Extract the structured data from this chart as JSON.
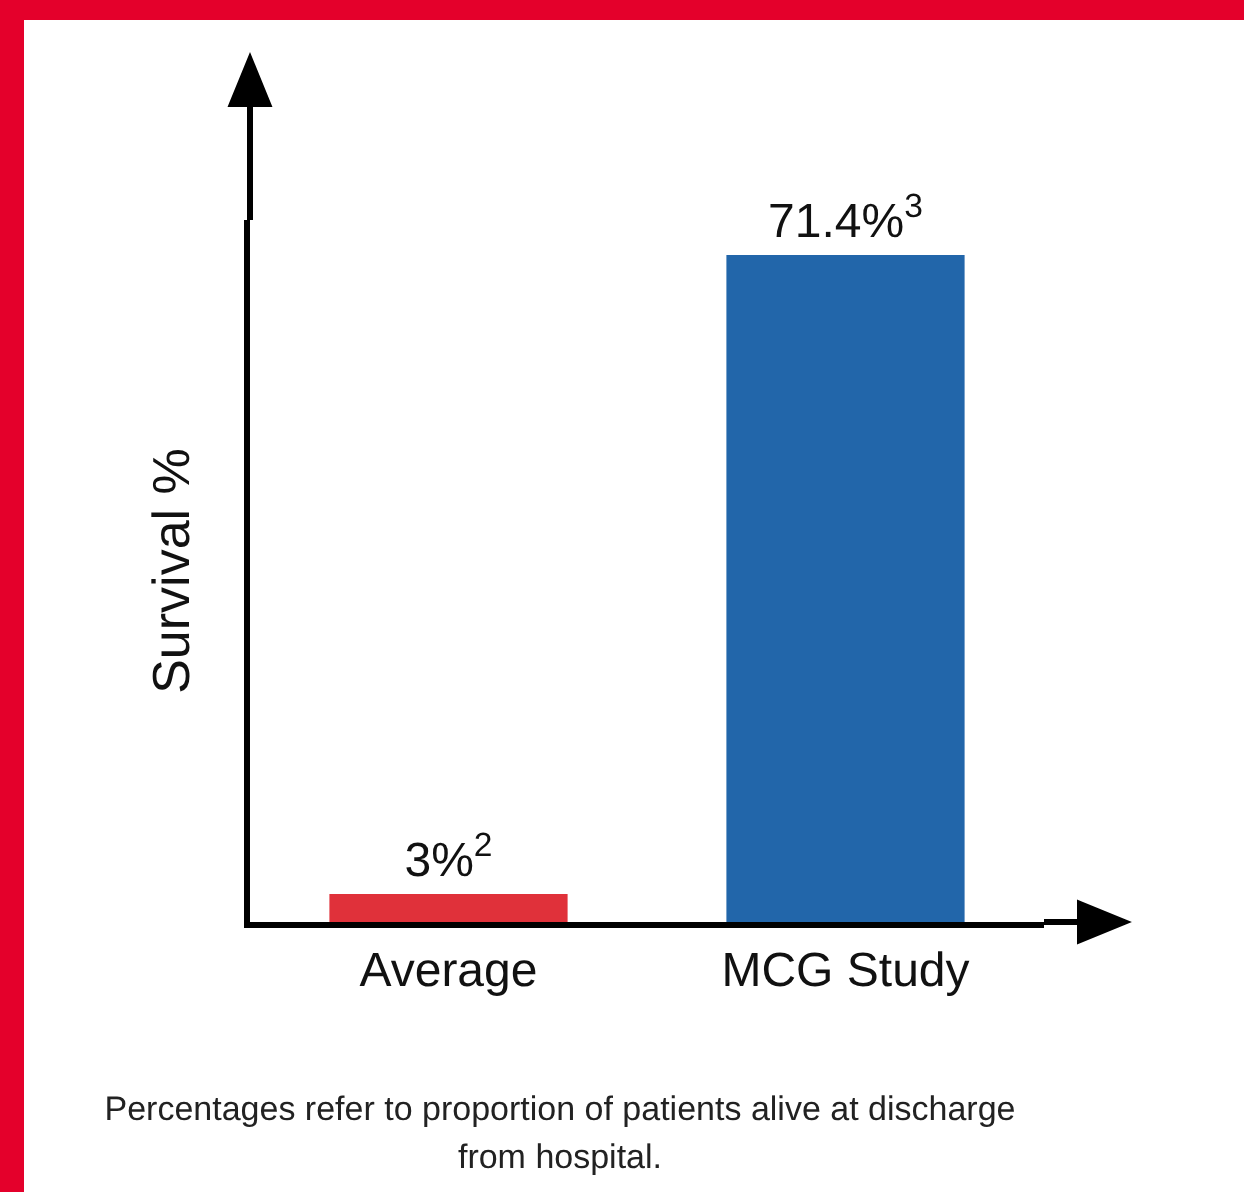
{
  "chart_data": {
    "type": "bar",
    "categories": [
      "Average",
      "MCG Study"
    ],
    "values": [
      3,
      71.4
    ],
    "colors": [
      "#e0313a",
      "#2266aa"
    ],
    "value_labels": [
      "3%$^{2}$",
      "71.4%$^{3}$"
    ],
    "ylabel": "Survival %",
    "tick_labels": "x",
    "grid": false,
    "legend": false,
    "annotations": [
      "Percentages refer to proportion of patients alive at discharge from hospital."
    ]
  }
}
